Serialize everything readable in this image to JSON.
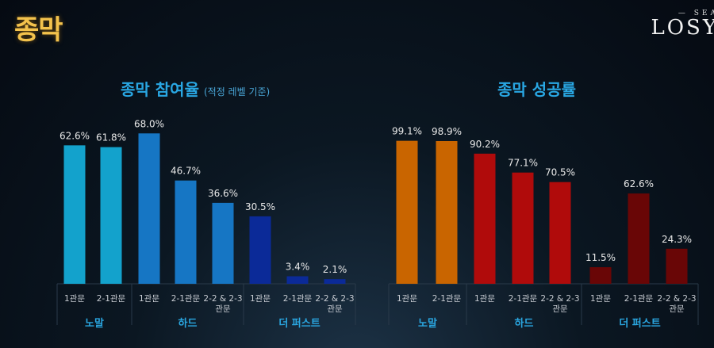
{
  "page_title": "종막",
  "logo_text": "SEASON LOSTARK",
  "chart_data": [
    {
      "type": "bar",
      "title": "종막 참여율",
      "subtitle": "(적정 레벨 기준)",
      "groups": [
        "노말",
        "하드",
        "더 퍼스트"
      ],
      "categories": [
        "1관문",
        "2-1관문",
        "1관문",
        "2-1관문",
        "2-2 & 2-3 관문",
        "1관문",
        "2-1관문",
        "2-2 & 2-3 관문"
      ],
      "category_group": [
        0,
        0,
        1,
        1,
        1,
        2,
        2,
        2
      ],
      "values": [
        62.6,
        61.8,
        68.0,
        46.7,
        36.6,
        30.5,
        3.4,
        2.1
      ],
      "labels": [
        "62.6%",
        "61.8%",
        "68.0%",
        "46.7%",
        "36.6%",
        "30.5%",
        "3.4%",
        "2.1%"
      ],
      "group_colors": [
        "#13a2cc",
        "#1676c4",
        "#0b2a98"
      ],
      "ylim": [
        0,
        100
      ],
      "grid": false
    },
    {
      "type": "bar",
      "title": "종막 성공률",
      "groups": [
        "노말",
        "하드",
        "더 퍼스트"
      ],
      "categories": [
        "1관문",
        "2-1관문",
        "1관문",
        "2-1관문",
        "2-2 & 2-3 관문",
        "1관문",
        "2-1관문",
        "2-2 & 2-3 관문"
      ],
      "category_group": [
        0,
        0,
        1,
        1,
        1,
        2,
        2,
        2
      ],
      "values": [
        99.1,
        98.9,
        90.2,
        77.1,
        70.5,
        11.5,
        62.6,
        24.3
      ],
      "labels": [
        "99.1%",
        "98.9%",
        "90.2%",
        "77.1%",
        "70.5%",
        "11.5%",
        "62.6%",
        "24.3%"
      ],
      "group_colors": [
        "#c96500",
        "#b00b0b",
        "#690606"
      ],
      "ylim": [
        0,
        100
      ],
      "grid": false
    }
  ]
}
